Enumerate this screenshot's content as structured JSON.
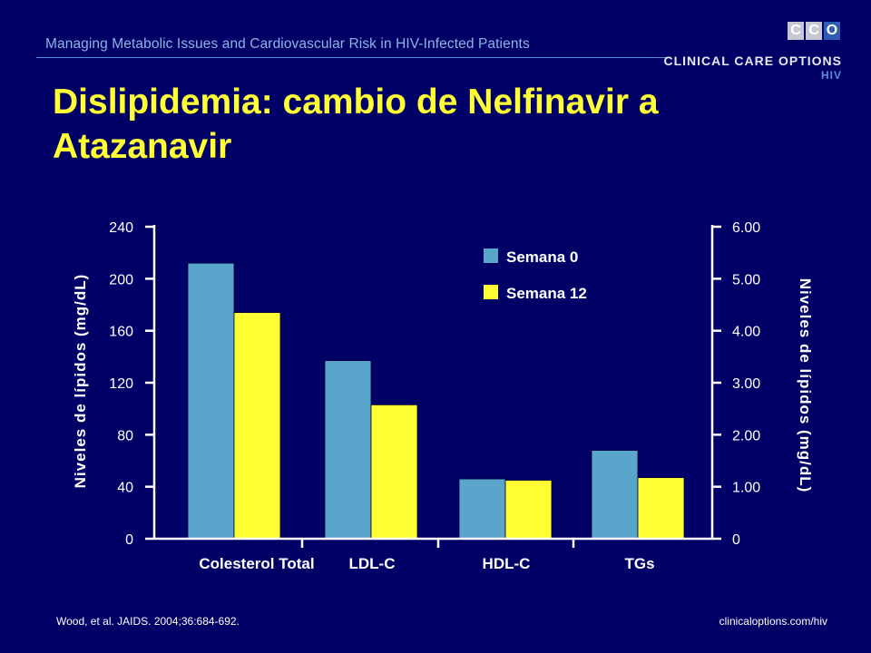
{
  "header": {
    "text": "Managing Metabolic Issues and Cardiovascular Risk in HIV-Infected Patients"
  },
  "logo": {
    "letters": [
      "C",
      "C",
      "O"
    ],
    "name": "CLINICAL CARE OPTIONS",
    "sub": "HIV"
  },
  "title": "Dislipidemia: cambio de Nelfinavir a Atazanavir",
  "chart_data": {
    "type": "bar",
    "categories": [
      "Colesterol Total",
      "LDL-C",
      "HDL-C",
      "TGs"
    ],
    "series": [
      {
        "name": "Semana 0",
        "values": [
          212,
          137,
          46,
          68
        ],
        "color": "#5aa5cc"
      },
      {
        "name": "Semana 12",
        "values": [
          174,
          103,
          45,
          47
        ],
        "color": "#ffff33"
      }
    ],
    "ylabel": "Niveles de lípidos (mg/dL)",
    "ylim": [
      0,
      240
    ],
    "yticks": [
      "0",
      "40",
      "80",
      "120",
      "160",
      "200",
      "240"
    ],
    "y2label": "Niveles de lípidos (mg/dL)",
    "y2lim": [
      0,
      6
    ],
    "y2ticks": [
      "0",
      "1.00",
      "2.00",
      "3.00",
      "4.00",
      "5.00",
      "6.00"
    ],
    "legend_position": "top-center",
    "grid": false
  },
  "footer": {
    "citation": "Wood, et al. JAIDS. 2004;36:684-692.",
    "url": "clinicaloptions.com/hiv"
  }
}
